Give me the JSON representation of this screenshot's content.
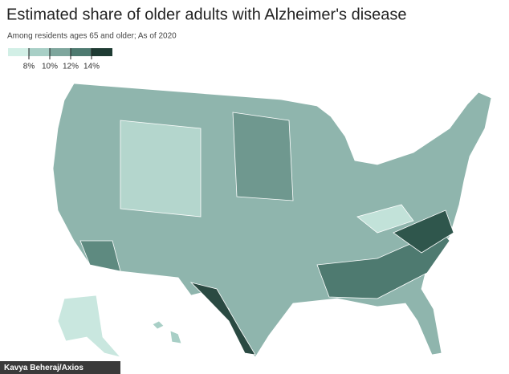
{
  "header": {
    "title": "Estimated share of older adults with Alzheimer's disease",
    "subtitle": "Among residents ages 65 and older; As of 2020"
  },
  "legend": {
    "colors": [
      "#d2efe6",
      "#a8cfc6",
      "#7ea69d",
      "#4e7a70",
      "#1e3b33"
    ],
    "ticks": [
      {
        "value": 8,
        "label": "8%"
      },
      {
        "value": 10,
        "label": "10%"
      },
      {
        "value": 12,
        "label": "12%"
      },
      {
        "value": 14,
        "label": "14%"
      }
    ]
  },
  "credit": "Kavya Beheraj/Axios"
}
